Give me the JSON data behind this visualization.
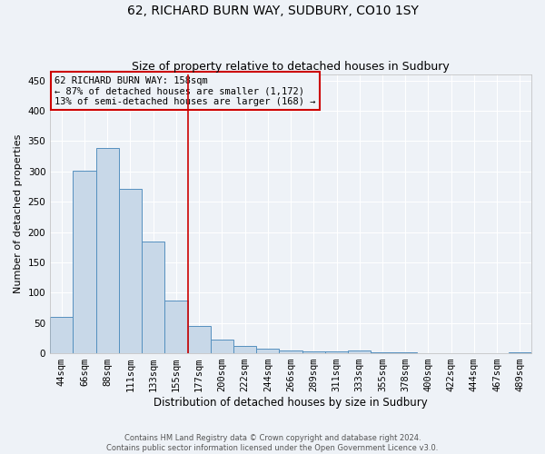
{
  "title": "62, RICHARD BURN WAY, SUDBURY, CO10 1SY",
  "subtitle": "Size of property relative to detached houses in Sudbury",
  "xlabel": "Distribution of detached houses by size in Sudbury",
  "ylabel": "Number of detached properties",
  "bar_color": "#c8d8e8",
  "bar_edge_color": "#5590bf",
  "categories": [
    "44sqm",
    "66sqm",
    "88sqm",
    "111sqm",
    "133sqm",
    "155sqm",
    "177sqm",
    "200sqm",
    "222sqm",
    "244sqm",
    "266sqm",
    "289sqm",
    "311sqm",
    "333sqm",
    "355sqm",
    "378sqm",
    "400sqm",
    "422sqm",
    "444sqm",
    "467sqm",
    "489sqm"
  ],
  "values": [
    60,
    301,
    338,
    272,
    184,
    87,
    45,
    22,
    12,
    7,
    5,
    3,
    3,
    4,
    1,
    1,
    0,
    0,
    0,
    0,
    2
  ],
  "vline_index": 5.5,
  "vline_color": "#cc0000",
  "annotation_lines": [
    "62 RICHARD BURN WAY: 158sqm",
    "← 87% of detached houses are smaller (1,172)",
    "13% of semi-detached houses are larger (168) →"
  ],
  "ylim": [
    0,
    460
  ],
  "yticks": [
    0,
    50,
    100,
    150,
    200,
    250,
    300,
    350,
    400,
    450
  ],
  "footnote": "Contains HM Land Registry data © Crown copyright and database right 2024.\nContains public sector information licensed under the Open Government Licence v3.0.",
  "background_color": "#eef2f7",
  "grid_color": "#ffffff",
  "title_fontsize": 10,
  "subtitle_fontsize": 9,
  "ylabel_fontsize": 8,
  "xlabel_fontsize": 8.5,
  "tick_fontsize": 7.5,
  "annot_fontsize": 7.5,
  "footnote_fontsize": 6
}
